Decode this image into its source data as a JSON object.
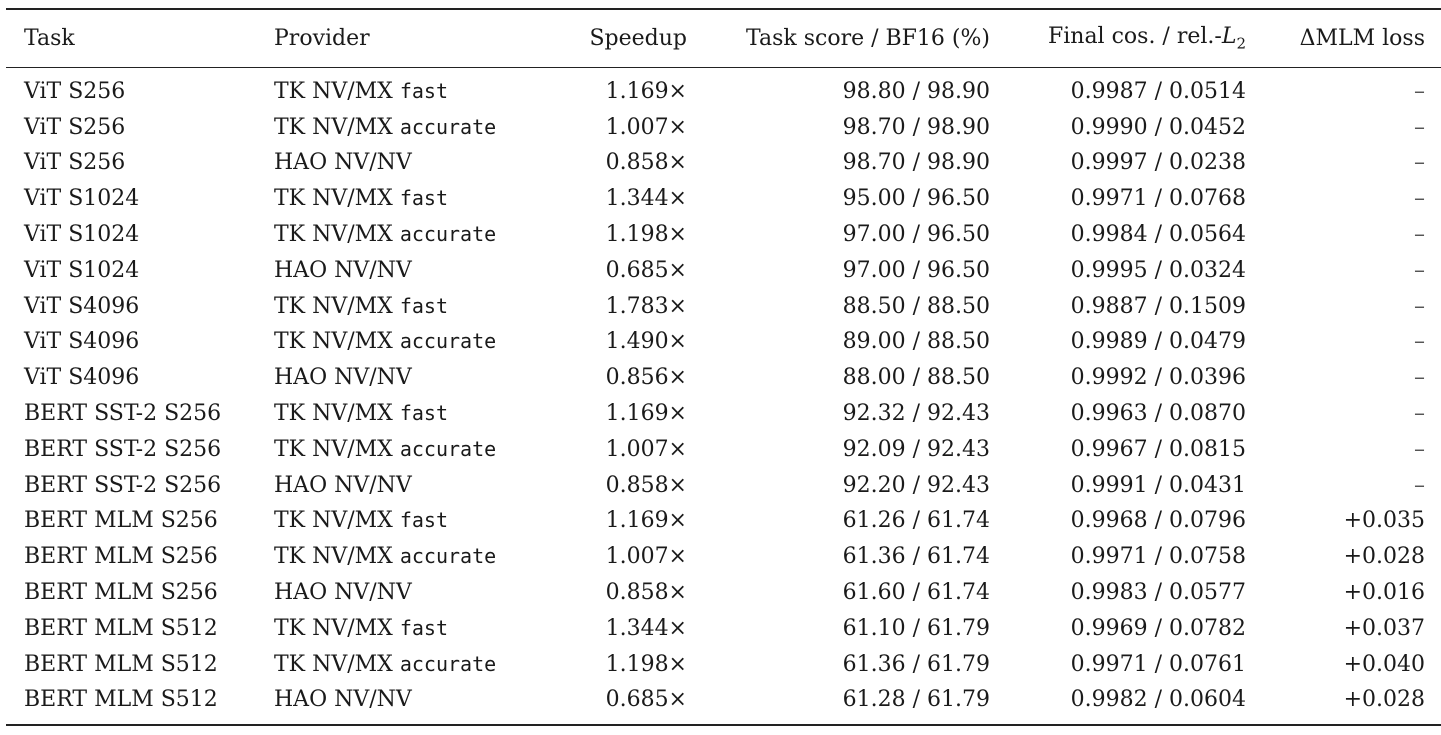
{
  "table": {
    "headers": {
      "task": "Task",
      "provider": "Provider",
      "speedup": "Speedup",
      "score": "Task score / BF16 (%)",
      "cos_prefix": "Final cos. / rel.-",
      "cos_var": "L",
      "cos_sub": "2",
      "mlm": "ΔMLM loss"
    },
    "rows": [
      {
        "task": "ViT S256",
        "provider": "TK NV/MX ",
        "mode": "fast",
        "speedup": "1.169×",
        "score": "98.80 / 98.90",
        "cos": "0.9987 / 0.0514",
        "mlm": "–"
      },
      {
        "task": "ViT S256",
        "provider": "TK NV/MX ",
        "mode": "accurate",
        "speedup": "1.007×",
        "score": "98.70 / 98.90",
        "cos": "0.9990 / 0.0452",
        "mlm": "–"
      },
      {
        "task": "ViT S256",
        "provider": "HAO NV/NV",
        "mode": "",
        "speedup": "0.858×",
        "score": "98.70 / 98.90",
        "cos": "0.9997 / 0.0238",
        "mlm": "–"
      },
      {
        "task": "ViT S1024",
        "provider": "TK NV/MX ",
        "mode": "fast",
        "speedup": "1.344×",
        "score": "95.00 / 96.50",
        "cos": "0.9971 / 0.0768",
        "mlm": "–"
      },
      {
        "task": "ViT S1024",
        "provider": "TK NV/MX ",
        "mode": "accurate",
        "speedup": "1.198×",
        "score": "97.00 / 96.50",
        "cos": "0.9984 / 0.0564",
        "mlm": "–"
      },
      {
        "task": "ViT S1024",
        "provider": "HAO NV/NV",
        "mode": "",
        "speedup": "0.685×",
        "score": "97.00 / 96.50",
        "cos": "0.9995 / 0.0324",
        "mlm": "–"
      },
      {
        "task": "ViT S4096",
        "provider": "TK NV/MX ",
        "mode": "fast",
        "speedup": "1.783×",
        "score": "88.50 / 88.50",
        "cos": "0.9887 / 0.1509",
        "mlm": "–"
      },
      {
        "task": "ViT S4096",
        "provider": "TK NV/MX ",
        "mode": "accurate",
        "speedup": "1.490×",
        "score": "89.00 / 88.50",
        "cos": "0.9989 / 0.0479",
        "mlm": "–"
      },
      {
        "task": "ViT S4096",
        "provider": "HAO NV/NV",
        "mode": "",
        "speedup": "0.856×",
        "score": "88.00 / 88.50",
        "cos": "0.9992 / 0.0396",
        "mlm": "–"
      },
      {
        "task": "BERT SST-2 S256",
        "provider": "TK NV/MX ",
        "mode": "fast",
        "speedup": "1.169×",
        "score": "92.32 / 92.43",
        "cos": "0.9963 / 0.0870",
        "mlm": "–"
      },
      {
        "task": "BERT SST-2 S256",
        "provider": "TK NV/MX ",
        "mode": "accurate",
        "speedup": "1.007×",
        "score": "92.09 / 92.43",
        "cos": "0.9967 / 0.0815",
        "mlm": "–"
      },
      {
        "task": "BERT SST-2 S256",
        "provider": "HAO NV/NV",
        "mode": "",
        "speedup": "0.858×",
        "score": "92.20 / 92.43",
        "cos": "0.9991 / 0.0431",
        "mlm": "–"
      },
      {
        "task": "BERT MLM S256",
        "provider": "TK NV/MX ",
        "mode": "fast",
        "speedup": "1.169×",
        "score": "61.26 / 61.74",
        "cos": "0.9968 / 0.0796",
        "mlm": "+0.035"
      },
      {
        "task": "BERT MLM S256",
        "provider": "TK NV/MX ",
        "mode": "accurate",
        "speedup": "1.007×",
        "score": "61.36 / 61.74",
        "cos": "0.9971 / 0.0758",
        "mlm": "+0.028"
      },
      {
        "task": "BERT MLM S256",
        "provider": "HAO NV/NV",
        "mode": "",
        "speedup": "0.858×",
        "score": "61.60 / 61.74",
        "cos": "0.9983 / 0.0577",
        "mlm": "+0.016"
      },
      {
        "task": "BERT MLM S512",
        "provider": "TK NV/MX ",
        "mode": "fast",
        "speedup": "1.344×",
        "score": "61.10 / 61.79",
        "cos": "0.9969 / 0.0782",
        "mlm": "+0.037"
      },
      {
        "task": "BERT MLM S512",
        "provider": "TK NV/MX ",
        "mode": "accurate",
        "speedup": "1.198×",
        "score": "61.36 / 61.79",
        "cos": "0.9971 / 0.0761",
        "mlm": "+0.040"
      },
      {
        "task": "BERT MLM S512",
        "provider": "HAO NV/NV",
        "mode": "",
        "speedup": "0.685×",
        "score": "61.28 / 61.79",
        "cos": "0.9982 / 0.0604",
        "mlm": "+0.028"
      }
    ]
  }
}
